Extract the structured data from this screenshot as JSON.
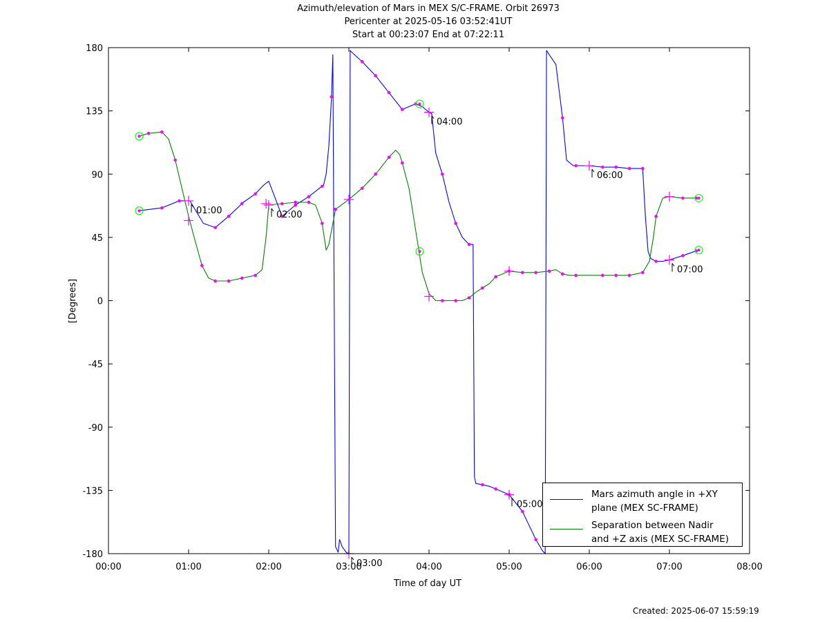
{
  "title": {
    "line1": "Azimuth/elevation of Mars in MEX S/C-FRAME.  Orbit 26973",
    "line2": "Pericenter at 2025-05-16 03:52:41UT",
    "line3": "Start at 00:23:07 End at 07:22:11"
  },
  "footer": {
    "created": "Created: 2025-06-07 15:59:19"
  },
  "colors": {
    "azimuth": "#0000ff",
    "separation": "#008000",
    "markers": "#ff00ff",
    "endpoints": "#00ff00"
  },
  "chart_data": {
    "type": "line",
    "xlabel": "Time of day UT",
    "ylabel": "[Degrees]",
    "xlim": [
      "00:00",
      "08:00"
    ],
    "ylim": [
      -180,
      180
    ],
    "xticks": [
      "00:00",
      "01:00",
      "02:00",
      "03:00",
      "04:00",
      "05:00",
      "06:00",
      "07:00",
      "08:00"
    ],
    "yticks": [
      180,
      135,
      90,
      45,
      0,
      -45,
      -90,
      -135,
      -180
    ],
    "grid": false,
    "legend_position": "bottom-right",
    "series": [
      {
        "name": "Mars azimuth angle in +XY\nplane (MEX SC-FRAME)",
        "key": "azimuth",
        "x": [
          "00:23",
          "00:40",
          "00:53",
          "01:01",
          "01:11",
          "01:20",
          "01:30",
          "01:41",
          "01:50",
          "01:56",
          "02:00",
          "02:10",
          "02:20",
          "02:30",
          "02:38",
          "02:41",
          "02:43",
          "02:45",
          "02:47",
          "02:48",
          "02:50",
          "02:52",
          "02:53",
          "02:55",
          "02:58",
          "03:00",
          "03:01",
          "03:03",
          "03:10",
          "03:20",
          "03:30",
          "03:40",
          "03:45",
          "03:50",
          "03:55",
          "04:00",
          "04:02",
          "04:05",
          "04:10",
          "04:15",
          "04:20",
          "04:25",
          "04:30",
          "04:33",
          "04:34",
          "04:35",
          "04:40",
          "04:45",
          "04:50",
          "05:00",
          "05:10",
          "05:15",
          "05:20",
          "05:25",
          "05:27",
          "05:28",
          "05:30",
          "05:35",
          "05:40",
          "05:43",
          "05:48",
          "05:50",
          "06:00",
          "06:10",
          "06:20",
          "06:30",
          "06:40",
          "06:42",
          "06:44",
          "06:46",
          "06:50",
          "06:55",
          "07:00",
          "07:10",
          "07:22"
        ],
        "y": [
          64,
          66,
          71,
          71,
          55,
          52,
          60,
          70,
          76,
          82,
          85,
          60,
          68,
          74,
          80,
          82,
          90,
          110,
          145,
          175,
          -175,
          -179,
          -170,
          -175,
          -179,
          -180,
          178,
          176,
          170,
          160,
          148,
          136,
          138,
          140,
          138,
          134,
          133,
          105,
          90,
          70,
          55,
          45,
          40,
          40,
          -125,
          -130,
          -131,
          -132,
          -134,
          -138,
          -150,
          -160,
          -170,
          -178,
          -180,
          178,
          175,
          168,
          130,
          100,
          96,
          96,
          96,
          95,
          95,
          94,
          94,
          60,
          35,
          30,
          28,
          28,
          29,
          32,
          36
        ]
      },
      {
        "name": "Separation between Nadir\nand +Z axis (MEX SC-FRAME)",
        "key": "separation",
        "x": [
          "00:23",
          "00:30",
          "00:40",
          "00:45",
          "00:50",
          "00:55",
          "01:00",
          "01:05",
          "01:10",
          "01:15",
          "01:20",
          "01:30",
          "01:40",
          "01:50",
          "01:55",
          "01:58",
          "02:00",
          "02:10",
          "02:20",
          "02:30",
          "02:35",
          "02:40",
          "02:43",
          "02:45",
          "02:50",
          "03:00",
          "03:10",
          "03:20",
          "03:30",
          "03:35",
          "03:38",
          "03:40",
          "03:45",
          "03:50",
          "03:55",
          "04:00",
          "04:05",
          "04:10",
          "04:15",
          "04:20",
          "04:25",
          "04:30",
          "04:35",
          "04:45",
          "04:50",
          "05:00",
          "05:10",
          "05:20",
          "05:30",
          "05:35",
          "05:40",
          "05:45",
          "05:50",
          "06:00",
          "06:10",
          "06:20",
          "06:30",
          "06:40",
          "06:45",
          "06:48",
          "06:50",
          "06:55",
          "07:00",
          "07:10",
          "07:22"
        ],
        "y": [
          117,
          119,
          120,
          115,
          100,
          80,
          60,
          42,
          25,
          16,
          14,
          14,
          16,
          18,
          22,
          45,
          68,
          69,
          70,
          70,
          68,
          55,
          36,
          40,
          65,
          72,
          80,
          90,
          102,
          107,
          104,
          98,
          80,
          50,
          20,
          5,
          0,
          0,
          0,
          0,
          0,
          2,
          6,
          12,
          17,
          21,
          20,
          20,
          21,
          22,
          19,
          18,
          18,
          18,
          18,
          18,
          18,
          20,
          28,
          45,
          60,
          73,
          74,
          73,
          73
        ]
      }
    ],
    "markers": {
      "azimuth": [
        "00:40",
        "00:53",
        "01:20",
        "01:30",
        "01:40",
        "01:50",
        "02:10",
        "02:20",
        "02:30",
        "02:40",
        "02:47",
        "03:10",
        "03:20",
        "03:30",
        "03:40",
        "03:50",
        "04:10",
        "04:20",
        "04:30",
        "04:40",
        "04:50",
        "05:00",
        "05:10",
        "05:20",
        "05:40",
        "05:50",
        "06:10",
        "06:20",
        "06:30",
        "06:40",
        "06:50",
        "07:10",
        "07:20"
      ],
      "separation": [
        "00:30",
        "00:40",
        "00:50",
        "01:10",
        "01:20",
        "01:30",
        "01:40",
        "01:50",
        "02:10",
        "02:20",
        "02:30",
        "02:40",
        "02:50",
        "03:10",
        "03:20",
        "03:30",
        "03:40",
        "04:10",
        "04:20",
        "04:30",
        "04:40",
        "04:50",
        "05:00",
        "05:10",
        "05:20",
        "05:30",
        "05:40",
        "05:50",
        "06:10",
        "06:20",
        "06:30",
        "06:40",
        "06:50",
        "07:10",
        "07:20"
      ]
    },
    "hour_crosses": [
      {
        "time": "01:00",
        "y": 71,
        "label": "01:00"
      },
      {
        "time": "02:00",
        "y": 68,
        "label": "02:00"
      },
      {
        "time": "03:00",
        "y": -180,
        "label": "03:00"
      },
      {
        "time": "04:00",
        "y": 134,
        "label": "04:00"
      },
      {
        "time": "05:00",
        "y": -138,
        "label": "05:00"
      },
      {
        "time": "06:00",
        "y": 96,
        "label": "06:00"
      },
      {
        "time": "07:00",
        "y": 29,
        "label": "07:00"
      }
    ],
    "extra_crosses": [
      {
        "time": "01:00",
        "y": 57
      },
      {
        "time": "01:58",
        "y": 69
      },
      {
        "time": "03:00",
        "y": 72
      },
      {
        "time": "04:00",
        "y": 3
      },
      {
        "time": "05:00",
        "y": 21
      },
      {
        "time": "07:00",
        "y": 74
      }
    ],
    "endpoint_circles": [
      {
        "time": "00:23",
        "y": 64
      },
      {
        "time": "00:23",
        "y": 117
      },
      {
        "time": "03:53",
        "y": 140
      },
      {
        "time": "03:53",
        "y": 35
      },
      {
        "time": "07:22",
        "y": 36
      },
      {
        "time": "07:22",
        "y": 73
      }
    ]
  }
}
